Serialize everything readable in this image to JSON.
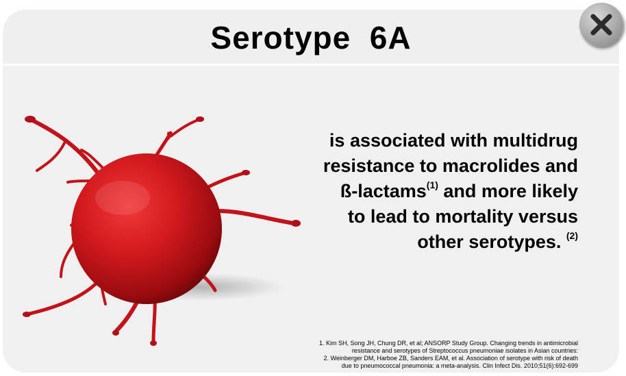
{
  "header": {
    "title": "Serotype  6A",
    "close_icon": "close-x-icon"
  },
  "body": {
    "lines": [
      "is associated with multidrug",
      "resistance to macrolides and",
      "ß-lactams",
      " and more likely",
      "to lead to mortality versus",
      "other serotypes. "
    ],
    "ref_mark_1": "(1)",
    "ref_mark_2": "(2)"
  },
  "references": [
    "1. Kim SH, Song JH, Chung DR, et al; ANSORP Study Group. Changing trends in antimicrobial",
    "resistance and serotypes of Streptococcus pneumoniae isolates in Asian countries:",
    "2. Weinberger DM, Harboe ZB, Sanders EAM, et al. Association of serotype  with risk of death",
    "due to pneumococcal pneumonia: a meta-analysis. Clin Infect Dis. 2010;51(6):692-699"
  ],
  "illustration": {
    "name": "bacterium-illustration",
    "color": "#d0141a"
  },
  "colors": {
    "background": "#f0f0f0",
    "text": "#000000",
    "close_button": "#a8a8a8"
  }
}
